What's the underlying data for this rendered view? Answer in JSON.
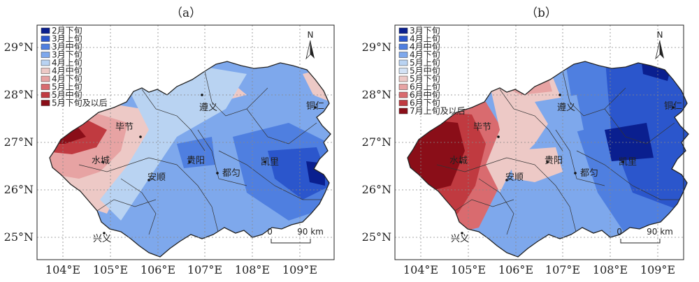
{
  "figure": {
    "panels": [
      {
        "label": "（a）",
        "legend": [
          {
            "text": "2月下旬",
            "color": "#0a1f8f"
          },
          {
            "text": "3月上旬",
            "color": "#2b56cc"
          },
          {
            "text": "3月中旬",
            "color": "#4f7fe0"
          },
          {
            "text": "3月下旬",
            "color": "#7ea8ec"
          },
          {
            "text": "4月上旬",
            "color": "#b9d3f2"
          },
          {
            "text": "4月中旬",
            "color": "#edc9c6"
          },
          {
            "text": "4月下旬",
            "color": "#e7a3a3"
          },
          {
            "text": "5月上旬",
            "color": "#d96b6f"
          },
          {
            "text": "5月中旬",
            "color": "#c03a40"
          },
          {
            "text": "5月下旬及以后",
            "color": "#8a0e18"
          }
        ],
        "cities": [
          "遵义",
          "铜仁",
          "毕节",
          "水城",
          "贵阳",
          "凯里",
          "安顺",
          "都匀",
          "兴义"
        ]
      },
      {
        "label": "（b）",
        "legend": [
          {
            "text": "3月下旬",
            "color": "#0a1f8f"
          },
          {
            "text": "4月上旬",
            "color": "#2b56cc"
          },
          {
            "text": "4月中旬",
            "color": "#4f7fe0"
          },
          {
            "text": "4月下旬",
            "color": "#7ea8ec"
          },
          {
            "text": "5月上旬",
            "color": "#b9d3f2"
          },
          {
            "text": "5月中旬",
            "color": "#d3e2f5"
          },
          {
            "text": "5月下旬",
            "color": "#edc9c6"
          },
          {
            "text": "6月上旬",
            "color": "#e7a3a3"
          },
          {
            "text": "6月中旬",
            "color": "#d96b6f"
          },
          {
            "text": "6月下旬",
            "color": "#c03a40"
          },
          {
            "text": "7月上旬及以后",
            "color": "#8a0e18"
          }
        ],
        "cities": [
          "遵义",
          "铜仁",
          "毕节",
          "水城",
          "贵阳",
          "凯里",
          "安顺",
          "都匀",
          "兴义"
        ]
      }
    ],
    "lat_labels": [
      "29°N",
      "28°N",
      "27°N",
      "26°N",
      "25°N"
    ],
    "lon_labels": [
      "104°E",
      "105°E",
      "106°E",
      "107°E",
      "108°E",
      "109°E"
    ],
    "north_label": "N",
    "scale": {
      "start": "0",
      "end": "90 km"
    }
  }
}
